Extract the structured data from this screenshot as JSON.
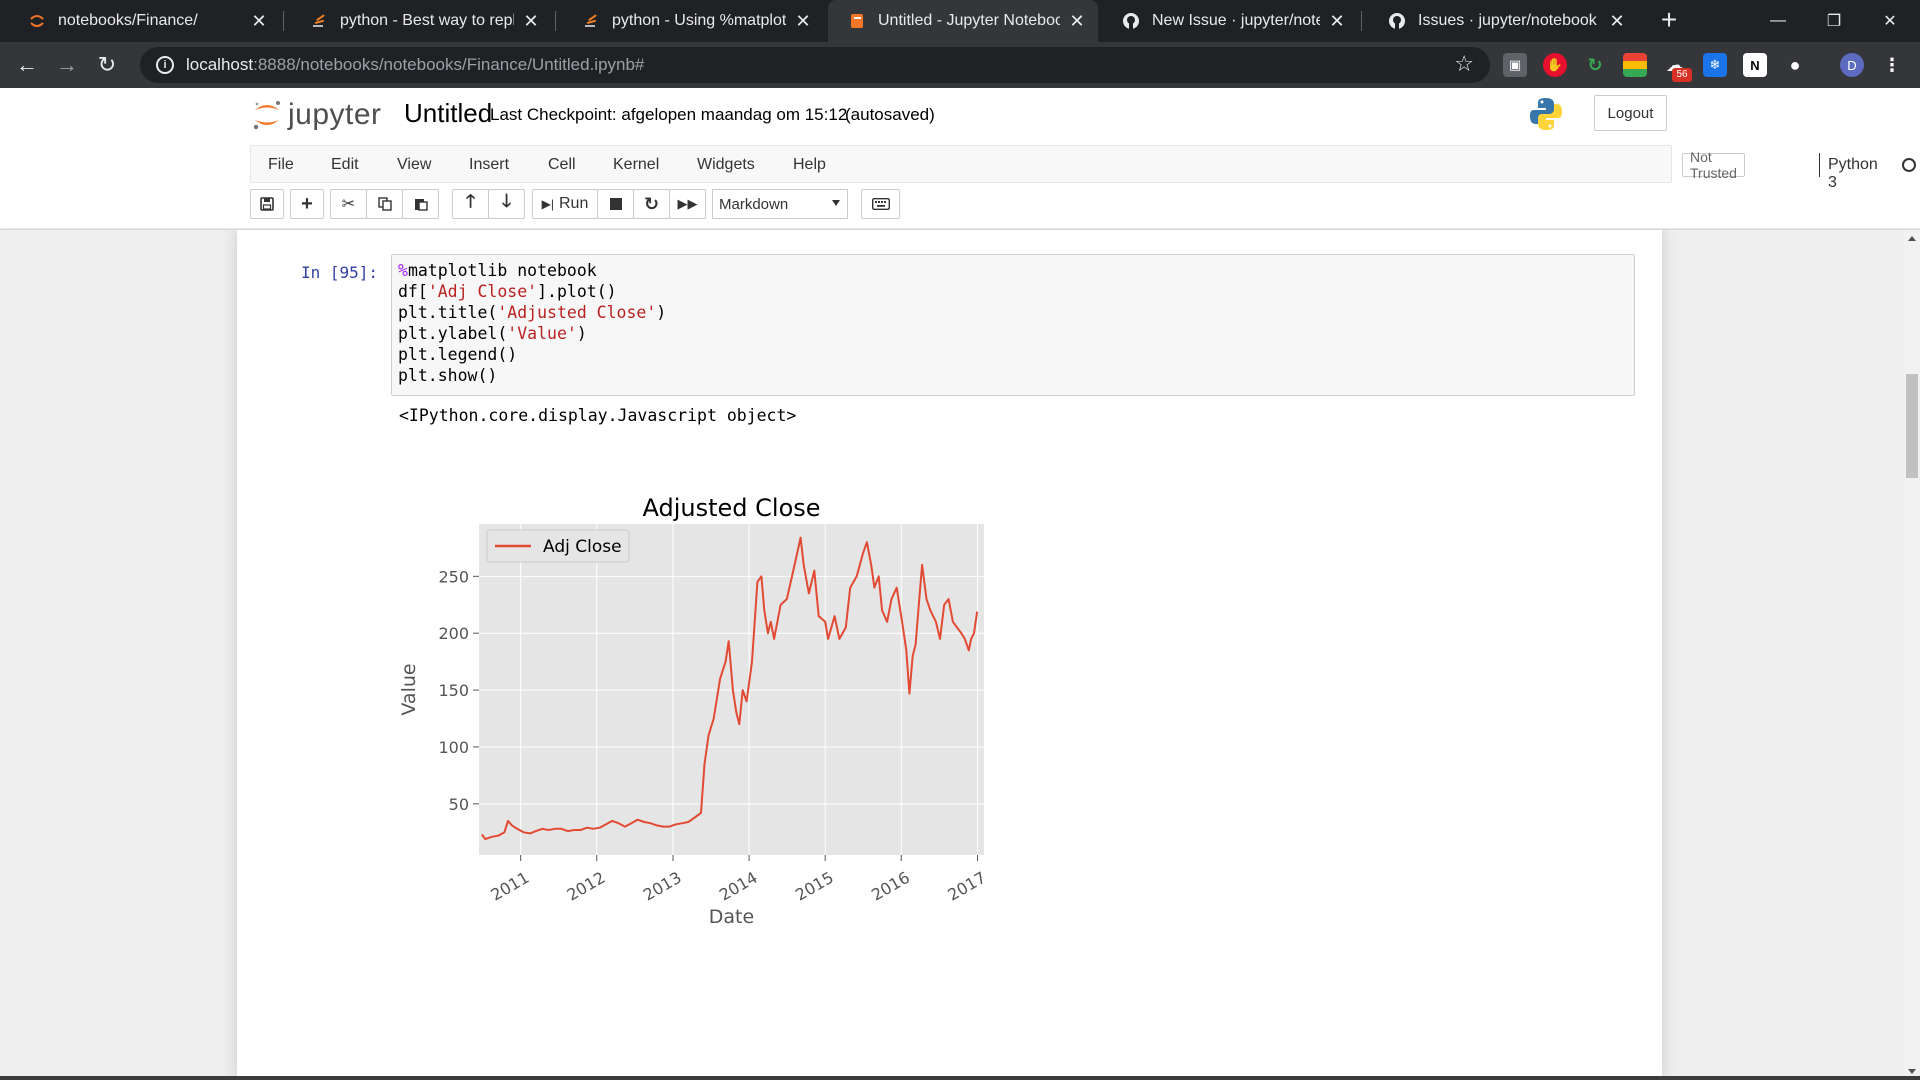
{
  "browser": {
    "tabs": [
      {
        "title": "notebooks/Finance/",
        "icon": "jupyter-icon",
        "active": false
      },
      {
        "title": "python - Best way to replace",
        "icon": "stackoverflow-icon",
        "active": false
      },
      {
        "title": "python - Using %matplotlib",
        "icon": "stackoverflow-icon",
        "active": false
      },
      {
        "title": "Untitled - Jupyter Notebook",
        "icon": "jupyter-notebook-icon",
        "active": true
      },
      {
        "title": "New Issue · jupyter/noteboo",
        "icon": "github-icon",
        "active": false
      },
      {
        "title": "Issues · jupyter/notebook",
        "icon": "github-icon",
        "active": false
      }
    ],
    "url_host": "localhost",
    "url_path": ":8888/notebooks/notebooks/Finance/Untitled.ipynb#",
    "extensions_badge": "56",
    "profile_initial": "D"
  },
  "header": {
    "logo_text": "jupyter",
    "notebook_name": "Untitled",
    "checkpoint_label": "Last Checkpoint:",
    "checkpoint_time": "afgelopen maandag om 15:12",
    "autosave_status": "(autosaved)",
    "logout_label": "Logout"
  },
  "menubar": {
    "items": [
      "File",
      "Edit",
      "View",
      "Insert",
      "Cell",
      "Kernel",
      "Widgets",
      "Help"
    ],
    "trust_status": "Not Trusted",
    "kernel_name": "Python 3"
  },
  "toolbar": {
    "run_label": "Run",
    "cell_type": "Markdown"
  },
  "cell": {
    "prompt": "In [95]:",
    "code": [
      [
        {
          "t": "%",
          "c": "magic"
        },
        {
          "t": "matplotlib notebook",
          "c": ""
        }
      ],
      [
        {
          "t": "df[",
          "c": ""
        },
        {
          "t": "'Adj Close'",
          "c": "str"
        },
        {
          "t": "].plot()",
          "c": ""
        }
      ],
      [
        {
          "t": "plt.title(",
          "c": ""
        },
        {
          "t": "'Adjusted Close'",
          "c": "str"
        },
        {
          "t": ")",
          "c": ""
        }
      ],
      [
        {
          "t": "plt.ylabel(",
          "c": ""
        },
        {
          "t": "'Value'",
          "c": "str"
        },
        {
          "t": ")",
          "c": ""
        }
      ],
      [
        {
          "t": "plt.legend()",
          "c": ""
        }
      ],
      [
        {
          "t": "plt.show()",
          "c": ""
        }
      ]
    ],
    "output_text": "<IPython.core.display.Javascript object>"
  },
  "chart_data": {
    "type": "line",
    "title": "Adjusted Close",
    "xlabel": "Date",
    "ylabel": "Value",
    "legend": "upper-left",
    "grid": true,
    "style": "ggplot",
    "line_color": "#e24a33",
    "xlim": [
      "2010-06-15",
      "2017-02-01"
    ],
    "ylim": [
      5,
      296
    ],
    "yticks": [
      50,
      100,
      150,
      200,
      250
    ],
    "xticks": [
      "2011",
      "2012",
      "2013",
      "2014",
      "2015",
      "2016",
      "2017"
    ],
    "series": [
      {
        "name": "Adj Close",
        "points": [
          [
            "2010-06-29",
            23
          ],
          [
            "2010-07-15",
            19
          ],
          [
            "2010-08-15",
            21
          ],
          [
            "2010-09-15",
            22
          ],
          [
            "2010-10-15",
            25
          ],
          [
            "2010-11-01",
            35
          ],
          [
            "2010-11-20",
            31
          ],
          [
            "2010-12-15",
            28
          ],
          [
            "2011-01-15",
            25
          ],
          [
            "2011-02-15",
            24
          ],
          [
            "2011-03-15",
            26
          ],
          [
            "2011-04-15",
            28
          ],
          [
            "2011-05-15",
            27
          ],
          [
            "2011-06-15",
            28
          ],
          [
            "2011-07-15",
            28
          ],
          [
            "2011-08-15",
            26
          ],
          [
            "2011-09-15",
            27
          ],
          [
            "2011-10-15",
            27
          ],
          [
            "2011-11-15",
            29
          ],
          [
            "2011-12-15",
            28
          ],
          [
            "2012-01-15",
            29
          ],
          [
            "2012-02-15",
            32
          ],
          [
            "2012-03-15",
            35
          ],
          [
            "2012-04-15",
            33
          ],
          [
            "2012-05-15",
            30
          ],
          [
            "2012-06-15",
            33
          ],
          [
            "2012-07-15",
            36
          ],
          [
            "2012-08-15",
            34
          ],
          [
            "2012-09-15",
            33
          ],
          [
            "2012-10-15",
            31
          ],
          [
            "2012-11-15",
            30
          ],
          [
            "2012-12-15",
            30
          ],
          [
            "2013-01-15",
            32
          ],
          [
            "2013-02-15",
            33
          ],
          [
            "2013-03-15",
            34
          ],
          [
            "2013-04-15",
            38
          ],
          [
            "2013-05-15",
            42
          ],
          [
            "2013-06-01",
            85
          ],
          [
            "2013-06-20",
            110
          ],
          [
            "2013-07-15",
            125
          ],
          [
            "2013-08-15",
            160
          ],
          [
            "2013-09-10",
            175
          ],
          [
            "2013-09-25",
            193
          ],
          [
            "2013-10-15",
            150
          ],
          [
            "2013-11-01",
            130
          ],
          [
            "2013-11-15",
            120
          ],
          [
            "2013-12-01",
            150
          ],
          [
            "2013-12-20",
            140
          ],
          [
            "2014-01-15",
            175
          ],
          [
            "2014-02-10",
            245
          ],
          [
            "2014-03-01",
            250
          ],
          [
            "2014-03-15",
            220
          ],
          [
            "2014-04-01",
            200
          ],
          [
            "2014-04-15",
            210
          ],
          [
            "2014-05-01",
            195
          ],
          [
            "2014-06-01",
            225
          ],
          [
            "2014-07-01",
            230
          ],
          [
            "2014-08-01",
            255
          ],
          [
            "2014-09-05",
            284
          ],
          [
            "2014-09-20",
            260
          ],
          [
            "2014-10-15",
            235
          ],
          [
            "2014-11-10",
            255
          ],
          [
            "2014-12-01",
            215
          ],
          [
            "2015-01-01",
            210
          ],
          [
            "2015-01-15",
            195
          ],
          [
            "2015-02-15",
            215
          ],
          [
            "2015-03-10",
            195
          ],
          [
            "2015-04-10",
            205
          ],
          [
            "2015-05-01",
            240
          ],
          [
            "2015-06-01",
            250
          ],
          [
            "2015-07-01",
            270
          ],
          [
            "2015-07-20",
            280
          ],
          [
            "2015-08-10",
            260
          ],
          [
            "2015-08-25",
            240
          ],
          [
            "2015-09-15",
            250
          ],
          [
            "2015-10-01",
            220
          ],
          [
            "2015-10-25",
            210
          ],
          [
            "2015-11-15",
            230
          ],
          [
            "2015-12-10",
            240
          ],
          [
            "2016-01-05",
            210
          ],
          [
            "2016-01-25",
            185
          ],
          [
            "2016-02-09",
            147
          ],
          [
            "2016-02-25",
            180
          ],
          [
            "2016-03-10",
            190
          ],
          [
            "2016-03-25",
            225
          ],
          [
            "2016-04-10",
            260
          ],
          [
            "2016-05-01",
            230
          ],
          [
            "2016-05-20",
            220
          ],
          [
            "2016-06-15",
            210
          ],
          [
            "2016-07-05",
            195
          ],
          [
            "2016-07-25",
            225
          ],
          [
            "2016-08-15",
            230
          ],
          [
            "2016-09-05",
            210
          ],
          [
            "2016-09-25",
            205
          ],
          [
            "2016-10-15",
            200
          ],
          [
            "2016-11-01",
            195
          ],
          [
            "2016-11-20",
            185
          ],
          [
            "2016-12-01",
            195
          ],
          [
            "2016-12-15",
            200
          ],
          [
            "2016-12-30",
            219
          ]
        ]
      }
    ]
  }
}
